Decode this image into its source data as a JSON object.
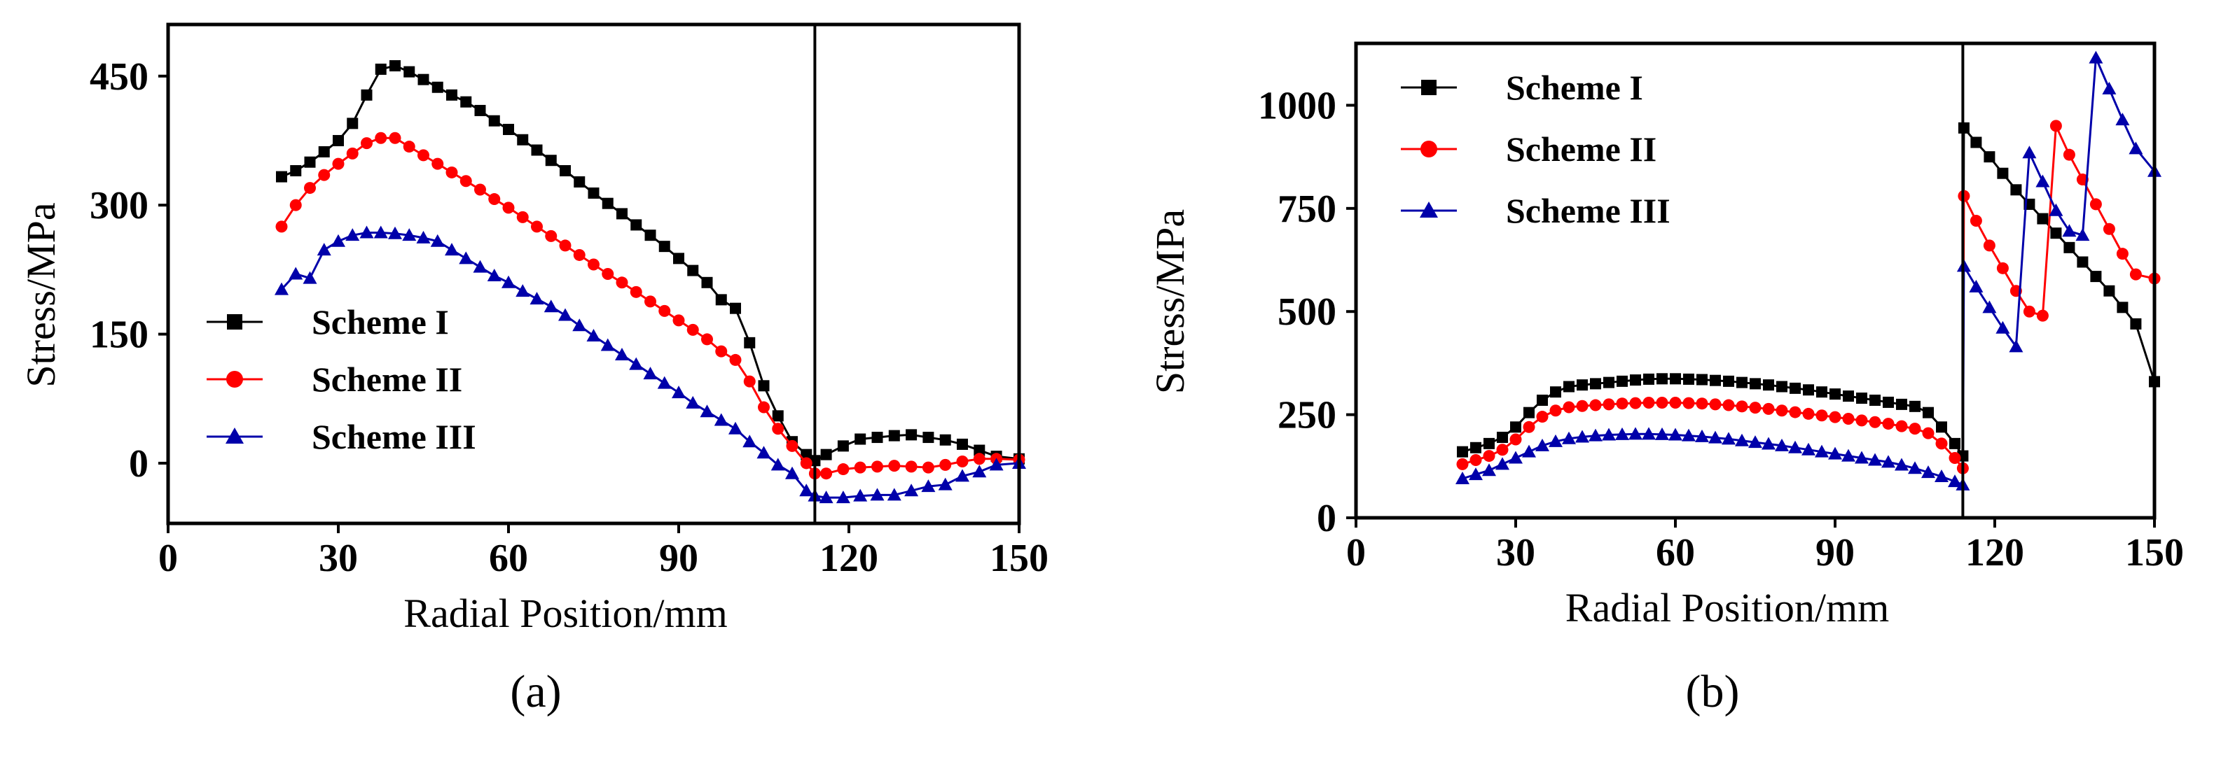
{
  "chart_data": [
    {
      "type": "line",
      "panel_label": "(a)",
      "xlabel": "Radial Position/mm",
      "ylabel": "Stress/MPa",
      "xlim": [
        0,
        150
      ],
      "ylim": [
        -70,
        510
      ],
      "xticks": [
        0,
        30,
        60,
        90,
        120,
        150
      ],
      "yticks": [
        0,
        150,
        300,
        450
      ],
      "vline_x": 114,
      "legend_position": "lower-left",
      "series": [
        {
          "name": "Scheme I",
          "color": "#000000",
          "marker": "square",
          "x": [
            20,
            22.5,
            25,
            27.5,
            30,
            32.5,
            35,
            37.5,
            40,
            42.5,
            45,
            47.5,
            50,
            52.5,
            55,
            57.5,
            60,
            62.5,
            65,
            67.5,
            70,
            72.5,
            75,
            77.5,
            80,
            82.5,
            85,
            87.5,
            90,
            92.5,
            95,
            97.5,
            100,
            102.5,
            105,
            107.5,
            110,
            112.5,
            114,
            116,
            119,
            122,
            125,
            128,
            131,
            134,
            137,
            140,
            143,
            146,
            150
          ],
          "y": [
            333,
            340,
            350,
            362,
            375,
            395,
            428,
            458,
            462,
            455,
            446,
            437,
            428,
            420,
            410,
            398,
            388,
            376,
            364,
            352,
            340,
            327,
            314,
            302,
            290,
            277,
            265,
            252,
            238,
            224,
            210,
            190,
            180,
            140,
            90,
            55,
            25,
            10,
            3,
            10,
            20,
            28,
            30,
            32,
            33,
            30,
            27,
            22,
            15,
            8,
            5
          ]
        },
        {
          "name": "Scheme II",
          "color": "#ff0000",
          "marker": "circle",
          "x": [
            20,
            22.5,
            25,
            27.5,
            30,
            32.5,
            35,
            37.5,
            40,
            42.5,
            45,
            47.5,
            50,
            52.5,
            55,
            57.5,
            60,
            62.5,
            65,
            67.5,
            70,
            72.5,
            75,
            77.5,
            80,
            82.5,
            85,
            87.5,
            90,
            92.5,
            95,
            97.5,
            100,
            102.5,
            105,
            107.5,
            110,
            112.5,
            114,
            116,
            119,
            122,
            125,
            128,
            131,
            134,
            137,
            140,
            143,
            146,
            150
          ],
          "y": [
            275,
            300,
            320,
            335,
            348,
            360,
            372,
            378,
            378,
            368,
            358,
            348,
            338,
            328,
            318,
            307,
            297,
            286,
            275,
            264,
            253,
            242,
            231,
            220,
            210,
            199,
            188,
            177,
            166,
            155,
            144,
            130,
            120,
            95,
            65,
            40,
            20,
            0,
            -12,
            -12,
            -7,
            -5,
            -4,
            -3,
            -4,
            -5,
            -2,
            2,
            5,
            5,
            4
          ]
        },
        {
          "name": "Scheme III",
          "color": "#0000aa",
          "marker": "triangle",
          "x": [
            20,
            22.5,
            25,
            27.5,
            30,
            32.5,
            35,
            37.5,
            40,
            42.5,
            45,
            47.5,
            50,
            52.5,
            55,
            57.5,
            60,
            62.5,
            65,
            67.5,
            70,
            72.5,
            75,
            77.5,
            80,
            82.5,
            85,
            87.5,
            90,
            92.5,
            95,
            97.5,
            100,
            102.5,
            105,
            107.5,
            110,
            112.5,
            114,
            116,
            119,
            122,
            125,
            128,
            131,
            134,
            137,
            140,
            143,
            146,
            150
          ],
          "y": [
            202,
            220,
            215,
            248,
            258,
            265,
            268,
            268,
            267,
            265,
            262,
            258,
            248,
            238,
            228,
            218,
            210,
            200,
            191,
            182,
            172,
            160,
            148,
            137,
            126,
            115,
            104,
            93,
            82,
            70,
            60,
            50,
            40,
            25,
            12,
            -2,
            -12,
            -32,
            -38,
            -40,
            -40,
            -38,
            -37,
            -37,
            -32,
            -27,
            -25,
            -15,
            -10,
            -2,
            0
          ]
        }
      ]
    },
    {
      "type": "line",
      "panel_label": "(b)",
      "xlabel": "Radial Position/mm",
      "ylabel": "Stress/MPa",
      "xlim": [
        0,
        150
      ],
      "ylim": [
        0,
        1150
      ],
      "xticks": [
        0,
        30,
        60,
        90,
        120,
        150
      ],
      "yticks": [
        0,
        250,
        500,
        750,
        1000
      ],
      "vline_x": 114,
      "legend_position": "top-left",
      "series": [
        {
          "name": "Scheme I",
          "color": "#000000",
          "marker": "square",
          "x": [
            20,
            22.5,
            25,
            27.5,
            30,
            32.5,
            35,
            37.5,
            40,
            42.5,
            45,
            47.5,
            50,
            52.5,
            55,
            57.5,
            60,
            62.5,
            65,
            67.5,
            70,
            72.5,
            75,
            77.5,
            80,
            82.5,
            85,
            87.5,
            90,
            92.5,
            95,
            97.5,
            100,
            102.5,
            105,
            107.5,
            110,
            112.5,
            114,
            114.2,
            116.5,
            119,
            121.5,
            124,
            126.5,
            129,
            131.5,
            134,
            136.5,
            139,
            141.5,
            144,
            146.5,
            150
          ],
          "y": [
            160,
            170,
            180,
            195,
            220,
            255,
            285,
            305,
            318,
            322,
            325,
            328,
            331,
            334,
            336,
            337,
            337,
            336,
            335,
            333,
            331,
            328,
            325,
            322,
            318,
            314,
            310,
            305,
            300,
            295,
            290,
            285,
            280,
            275,
            270,
            255,
            220,
            180,
            150,
            945,
            910,
            875,
            835,
            795,
            760,
            725,
            690,
            655,
            620,
            585,
            550,
            510,
            470,
            330
          ]
        },
        {
          "name": "Scheme II",
          "color": "#ff0000",
          "marker": "circle",
          "x": [
            20,
            22.5,
            25,
            27.5,
            30,
            32.5,
            35,
            37.5,
            40,
            42.5,
            45,
            47.5,
            50,
            52.5,
            55,
            57.5,
            60,
            62.5,
            65,
            67.5,
            70,
            72.5,
            75,
            77.5,
            80,
            82.5,
            85,
            87.5,
            90,
            92.5,
            95,
            97.5,
            100,
            102.5,
            105,
            107.5,
            110,
            112.5,
            114,
            114.2,
            116.5,
            119,
            121.5,
            124,
            126.5,
            129,
            131.5,
            134,
            136.5,
            139,
            141.5,
            144,
            146.5,
            150
          ],
          "y": [
            130,
            140,
            150,
            165,
            190,
            220,
            245,
            260,
            268,
            271,
            273,
            275,
            277,
            278,
            279,
            279,
            279,
            278,
            277,
            275,
            273,
            270,
            267,
            264,
            260,
            256,
            252,
            248,
            244,
            240,
            236,
            232,
            228,
            222,
            216,
            205,
            180,
            145,
            120,
            780,
            720,
            660,
            605,
            550,
            500,
            490,
            950,
            880,
            820,
            760,
            700,
            640,
            590,
            580
          ]
        },
        {
          "name": "Scheme III",
          "color": "#0000aa",
          "marker": "triangle",
          "x": [
            20,
            22.5,
            25,
            27.5,
            30,
            32.5,
            35,
            37.5,
            40,
            42.5,
            45,
            47.5,
            50,
            52.5,
            55,
            57.5,
            60,
            62.5,
            65,
            67.5,
            70,
            72.5,
            75,
            77.5,
            80,
            82.5,
            85,
            87.5,
            90,
            92.5,
            95,
            97.5,
            100,
            102.5,
            105,
            107.5,
            110,
            112.5,
            114,
            114.2,
            116.5,
            119,
            121.5,
            124,
            126.5,
            129,
            131.5,
            134,
            136.5,
            139,
            141.5,
            144,
            146.5,
            150
          ],
          "y": [
            95,
            105,
            115,
            130,
            145,
            160,
            175,
            185,
            192,
            196,
            199,
            201,
            202,
            203,
            203,
            202,
            201,
            199,
            197,
            194,
            191,
            187,
            183,
            179,
            175,
            170,
            165,
            160,
            155,
            150,
            145,
            140,
            135,
            128,
            120,
            110,
            100,
            88,
            80,
            610,
            560,
            510,
            460,
            415,
            885,
            815,
            745,
            695,
            685,
            1115,
            1040,
            965,
            895,
            840
          ]
        }
      ]
    }
  ]
}
